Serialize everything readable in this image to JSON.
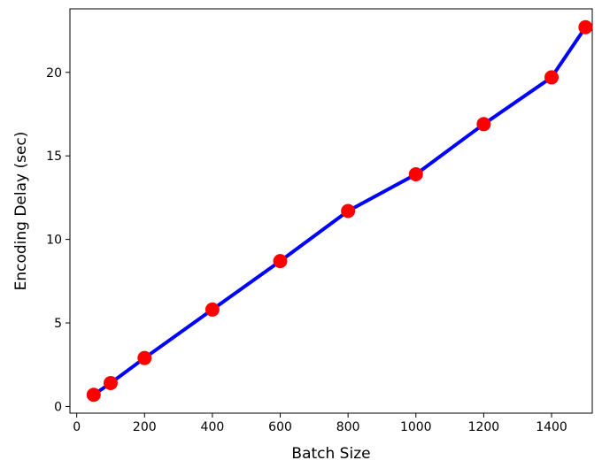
{
  "chart_data": {
    "type": "line",
    "title": "",
    "xlabel": "Batch Size",
    "ylabel": "Encoding Delay (sec)",
    "xlim": [
      -20,
      1520
    ],
    "ylim": [
      -0.4,
      23.8
    ],
    "xticks": [
      0,
      200,
      400,
      600,
      800,
      1000,
      1200,
      1400
    ],
    "yticks": [
      0,
      5,
      10,
      15,
      20
    ],
    "grid": false,
    "legend": "none",
    "series": [
      {
        "x": [
          50,
          100,
          200,
          400,
          600,
          800,
          1000,
          1200,
          1400,
          1500
        ],
        "y": [
          0.7,
          1.4,
          2.9,
          5.8,
          8.7,
          11.7,
          13.9,
          16.9,
          19.7,
          22.7
        ],
        "line_color": "#0000ff",
        "marker_color": "#ff0000"
      }
    ]
  }
}
